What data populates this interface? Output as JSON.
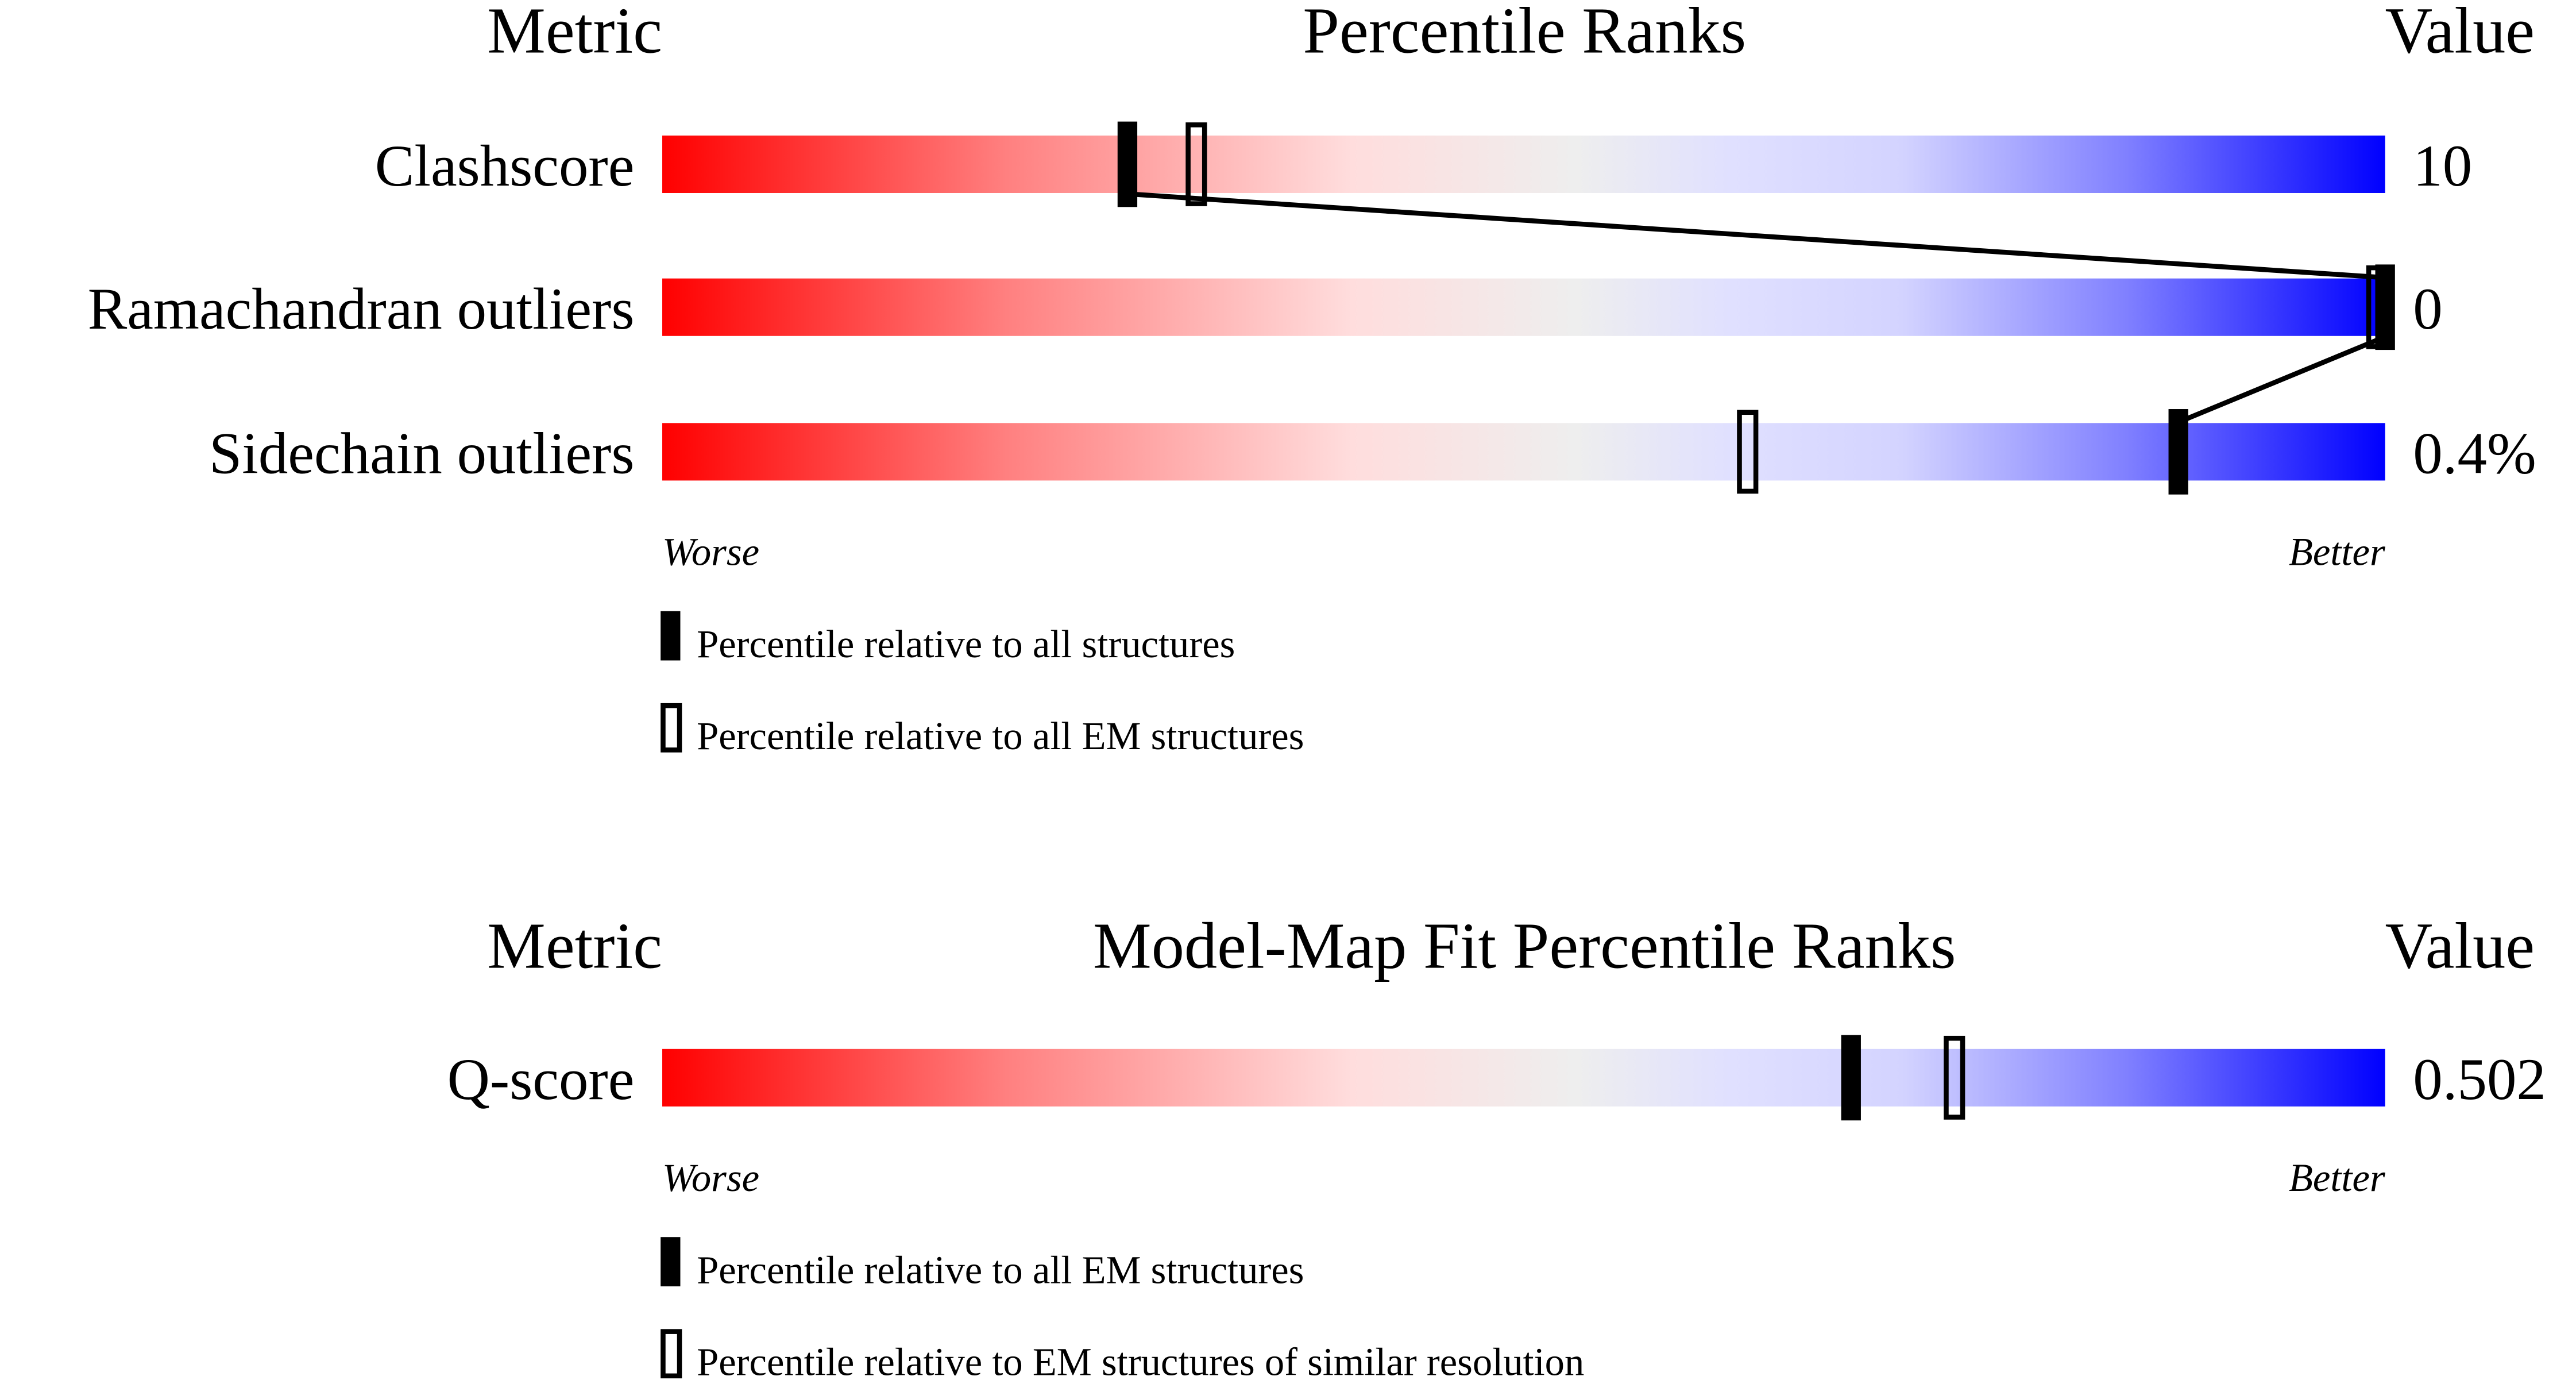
{
  "chart_data": [
    {
      "type": "percentile-slider",
      "header": {
        "metric": "Metric",
        "title": "Percentile Ranks",
        "value": "Value"
      },
      "xlim": [
        0,
        100
      ],
      "axis_labels": {
        "left": "Worse",
        "right": "Better"
      },
      "rows": [
        {
          "metric": "Clashscore",
          "value": "10",
          "percentile_all": 27,
          "percentile_em": 31
        },
        {
          "metric": "Ramachandran outliers",
          "value": "0",
          "percentile_all": 100,
          "percentile_em": 100
        },
        {
          "metric": "Sidechain outliers",
          "value": "0.4%",
          "percentile_all": 88,
          "percentile_em": 63
        }
      ],
      "legend": [
        {
          "marker": "filled",
          "label": "Percentile relative to all structures"
        },
        {
          "marker": "open",
          "label": "Percentile relative to all EM structures"
        }
      ]
    },
    {
      "type": "percentile-slider",
      "header": {
        "metric": "Metric",
        "title": "Model-Map Fit Percentile Ranks",
        "value": "Value"
      },
      "xlim": [
        0,
        100
      ],
      "axis_labels": {
        "left": "Worse",
        "right": "Better"
      },
      "rows": [
        {
          "metric": "Q-score",
          "value": "0.502",
          "percentile_all": 69,
          "percentile_em": 75
        }
      ],
      "legend": [
        {
          "marker": "filled",
          "label": "Percentile relative to all EM structures"
        },
        {
          "marker": "open",
          "label": "Percentile relative to EM structures of similar resolution"
        }
      ]
    }
  ],
  "colors": {
    "worse": "#ff0000",
    "middle": "#eeeeee",
    "better": "#0000ff",
    "marker": "#000000"
  }
}
